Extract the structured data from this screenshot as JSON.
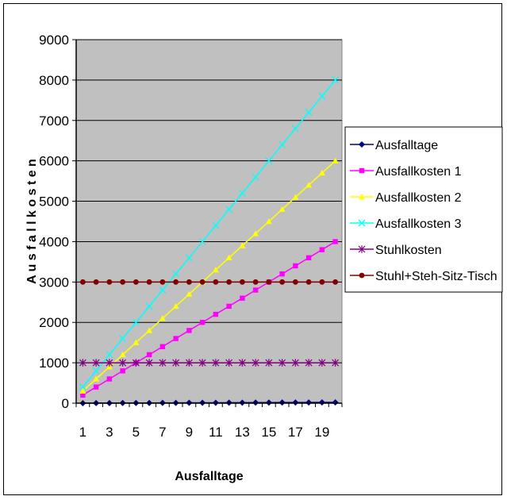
{
  "chart_data": {
    "type": "line",
    "title": "",
    "xlabel": "Ausfalltage",
    "ylabel": "A u s f a l l k o s t e n",
    "x": [
      1,
      2,
      3,
      4,
      5,
      6,
      7,
      8,
      9,
      10,
      11,
      12,
      13,
      14,
      15,
      16,
      17,
      18,
      19,
      20
    ],
    "x_tick_labels": [
      "1",
      "3",
      "5",
      "7",
      "9",
      "11",
      "13",
      "15",
      "17",
      "19"
    ],
    "y_tick_labels": [
      "0",
      "1000",
      "2000",
      "3000",
      "4000",
      "5000",
      "6000",
      "7000",
      "8000",
      "9000"
    ],
    "ylim": [
      0,
      9000
    ],
    "grid": "horizontal",
    "plot_background": "#C0C0C0",
    "legend_position": "right",
    "series": [
      {
        "name": "Ausfalltage",
        "color": "#000080",
        "marker": "diamond",
        "values": [
          1,
          2,
          3,
          4,
          5,
          6,
          7,
          8,
          9,
          10,
          11,
          12,
          13,
          14,
          15,
          16,
          17,
          18,
          19,
          20
        ]
      },
      {
        "name": "Ausfallkosten 1",
        "color": "#FF00FF",
        "marker": "square",
        "values": [
          200,
          400,
          600,
          800,
          1000,
          1200,
          1400,
          1600,
          1800,
          2000,
          2200,
          2400,
          2600,
          2800,
          3000,
          3200,
          3400,
          3600,
          3800,
          4000
        ]
      },
      {
        "name": "Ausfallkosten 2",
        "color": "#FFFF00",
        "marker": "triangle",
        "values": [
          300,
          600,
          900,
          1200,
          1500,
          1800,
          2100,
          2400,
          2700,
          3000,
          3300,
          3600,
          3900,
          4200,
          4500,
          4800,
          5100,
          5400,
          5700,
          6000
        ]
      },
      {
        "name": "Ausfallkosten 3",
        "color": "#00FFFF",
        "marker": "x",
        "values": [
          400,
          800,
          1200,
          1600,
          2000,
          2400,
          2800,
          3200,
          3600,
          4000,
          4400,
          4800,
          5200,
          5600,
          6000,
          6400,
          6800,
          7200,
          7600,
          8000
        ]
      },
      {
        "name": "Stuhlkosten",
        "color": "#800080",
        "marker": "star",
        "values": [
          1000,
          1000,
          1000,
          1000,
          1000,
          1000,
          1000,
          1000,
          1000,
          1000,
          1000,
          1000,
          1000,
          1000,
          1000,
          1000,
          1000,
          1000,
          1000,
          1000
        ]
      },
      {
        "name": "Stuhl+Steh-Sitz-Tisch",
        "color": "#800000",
        "marker": "circle",
        "values": [
          3000,
          3000,
          3000,
          3000,
          3000,
          3000,
          3000,
          3000,
          3000,
          3000,
          3000,
          3000,
          3000,
          3000,
          3000,
          3000,
          3000,
          3000,
          3000,
          3000
        ]
      }
    ]
  }
}
